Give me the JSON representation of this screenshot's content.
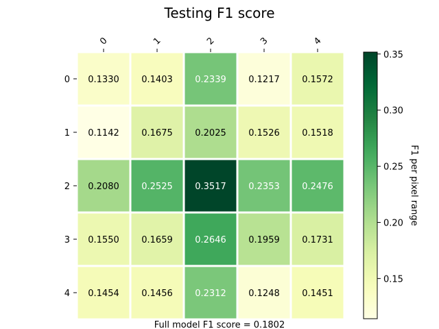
{
  "chart_data": {
    "type": "heatmap",
    "title": "Testing F1 score",
    "x_categories": [
      "0",
      "1",
      "2",
      "3",
      "4"
    ],
    "y_categories": [
      "0",
      "1",
      "2",
      "3",
      "4"
    ],
    "values": [
      [
        0.133,
        0.1403,
        0.2339,
        0.1217,
        0.1572
      ],
      [
        0.1142,
        0.1675,
        0.2025,
        0.1526,
        0.1518
      ],
      [
        0.208,
        0.2525,
        0.3517,
        0.2353,
        0.2476
      ],
      [
        0.155,
        0.1659,
        0.2646,
        0.1959,
        0.1731
      ],
      [
        0.1454,
        0.1456,
        0.2312,
        0.1248,
        0.1451
      ]
    ],
    "value_labels": [
      [
        "0.1330",
        "0.1403",
        "0.2339",
        "0.1217",
        "0.1572"
      ],
      [
        "0.1142",
        "0.1675",
        "0.2025",
        "0.1526",
        "0.1518"
      ],
      [
        "0.2080",
        "0.2525",
        "0.3517",
        "0.2353",
        "0.2476"
      ],
      [
        "0.1550",
        "0.1659",
        "0.2646",
        "0.1959",
        "0.1731"
      ],
      [
        "0.1454",
        "0.1456",
        "0.2312",
        "0.1248",
        "0.1451"
      ]
    ],
    "colormap": "YlGn",
    "colorbar": {
      "label": "F1 per pixel range",
      "range": [
        0.1142,
        0.3517
      ],
      "ticks": [
        0.15,
        0.2,
        0.25,
        0.3,
        0.35
      ],
      "tick_labels": [
        "0.15",
        "0.20",
        "0.25",
        "0.30",
        "0.35"
      ]
    },
    "footer": "Full model F1 score = 0.1802",
    "x_ticks_position": "top",
    "grid": false
  }
}
